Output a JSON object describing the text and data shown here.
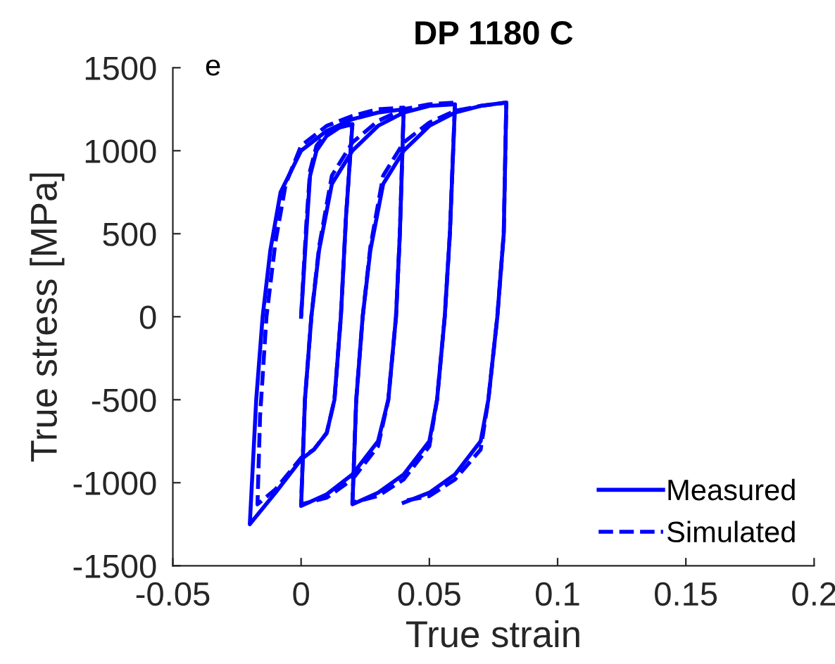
{
  "chart_data": {
    "type": "line",
    "title": "DP 1180 C",
    "xlabel": "True strain",
    "ylabel": "True stress [MPa]",
    "annotations": [
      "e"
    ],
    "xlim": [
      -0.05,
      0.2
    ],
    "xticks": [
      -0.05,
      0,
      0.05,
      0.1,
      0.15,
      0.2
    ],
    "ylim": [
      -1500,
      1500
    ],
    "yticks": [
      -1500,
      -1000,
      -500,
      0,
      500,
      1000,
      1500
    ],
    "grid": false,
    "legend": "bottom right",
    "marker": "none",
    "series": [
      {
        "name": "Measured",
        "color": "#0000ff",
        "line_style": "solid",
        "x": [
          0,
          0.002,
          0.0035,
          0.006,
          0.01,
          0.015,
          0.02,
          0.0175,
          0.0155,
          0.013,
          0.01,
          0.005,
          0,
          -0.01,
          -0.02,
          -0.0175,
          -0.015,
          -0.012,
          -0.008,
          0,
          0.01,
          0.02,
          0.03,
          0.04,
          0.0385,
          0.037,
          0.034,
          0.03,
          0.02,
          0.01,
          0,
          0.0015,
          0.004,
          0.007,
          0.012,
          0.02,
          0.03,
          0.04,
          0.05,
          0.06,
          0.058,
          0.056,
          0.053,
          0.05,
          0.04,
          0.03,
          0.02,
          0.0215,
          0.024,
          0.027,
          0.032,
          0.04,
          0.05,
          0.06,
          0.07,
          0.08,
          0.079,
          0.0765,
          0.073,
          0.07,
          0.06,
          0.05,
          0.04
        ],
        "values": [
          0,
          500,
          850,
          1000,
          1090,
          1140,
          1160,
          600,
          0,
          -500,
          -700,
          -800,
          -860,
          -1060,
          -1250,
          -500,
          0,
          400,
          750,
          1000,
          1120,
          1190,
          1230,
          1250,
          500,
          0,
          -500,
          -750,
          -950,
          -1070,
          -1140,
          -500,
          0,
          400,
          800,
          1000,
          1150,
          1230,
          1270,
          1280,
          500,
          0,
          -500,
          -750,
          -950,
          -1060,
          -1130,
          -500,
          0,
          400,
          800,
          1000,
          1150,
          1230,
          1270,
          1290,
          500,
          0,
          -500,
          -750,
          -950,
          -1060,
          -1120
        ]
      },
      {
        "name": "Simulated",
        "color": "#0000ff",
        "line_style": "dashed",
        "x": [
          0,
          0.002,
          0.0035,
          0.006,
          0.01,
          0.015,
          0.02,
          0.0175,
          0.0155,
          0.013,
          0.01,
          0.005,
          0,
          -0.01,
          -0.017,
          -0.016,
          -0.0135,
          -0.01,
          -0.006,
          0,
          0.01,
          0.02,
          0.03,
          0.04,
          0.0385,
          0.037,
          0.034,
          0.03,
          0.02,
          0.01,
          0,
          0.0015,
          0.004,
          0.007,
          0.012,
          0.02,
          0.03,
          0.04,
          0.05,
          0.06,
          0.058,
          0.056,
          0.053,
          0.05,
          0.04,
          0.03,
          0.02,
          0.0215,
          0.024,
          0.027,
          0.032,
          0.04,
          0.05,
          0.06,
          0.07,
          0.08,
          0.079,
          0.0765,
          0.073,
          0.07,
          0.06,
          0.05,
          0.04
        ],
        "values": [
          0,
          550,
          880,
          1030,
          1110,
          1150,
          1160,
          600,
          0,
          -500,
          -700,
          -800,
          -850,
          -1040,
          -1130,
          -600,
          0,
          450,
          800,
          1030,
          1150,
          1210,
          1250,
          1260,
          500,
          0,
          -500,
          -780,
          -980,
          -1090,
          -1130,
          -500,
          0,
          420,
          850,
          1050,
          1180,
          1250,
          1280,
          1290,
          500,
          0,
          -500,
          -780,
          -980,
          -1080,
          -1120,
          -500,
          0,
          420,
          850,
          1050,
          1170,
          1240,
          1270,
          1290,
          500,
          0,
          -500,
          -800,
          -980,
          -1080,
          -1110
        ]
      }
    ]
  }
}
